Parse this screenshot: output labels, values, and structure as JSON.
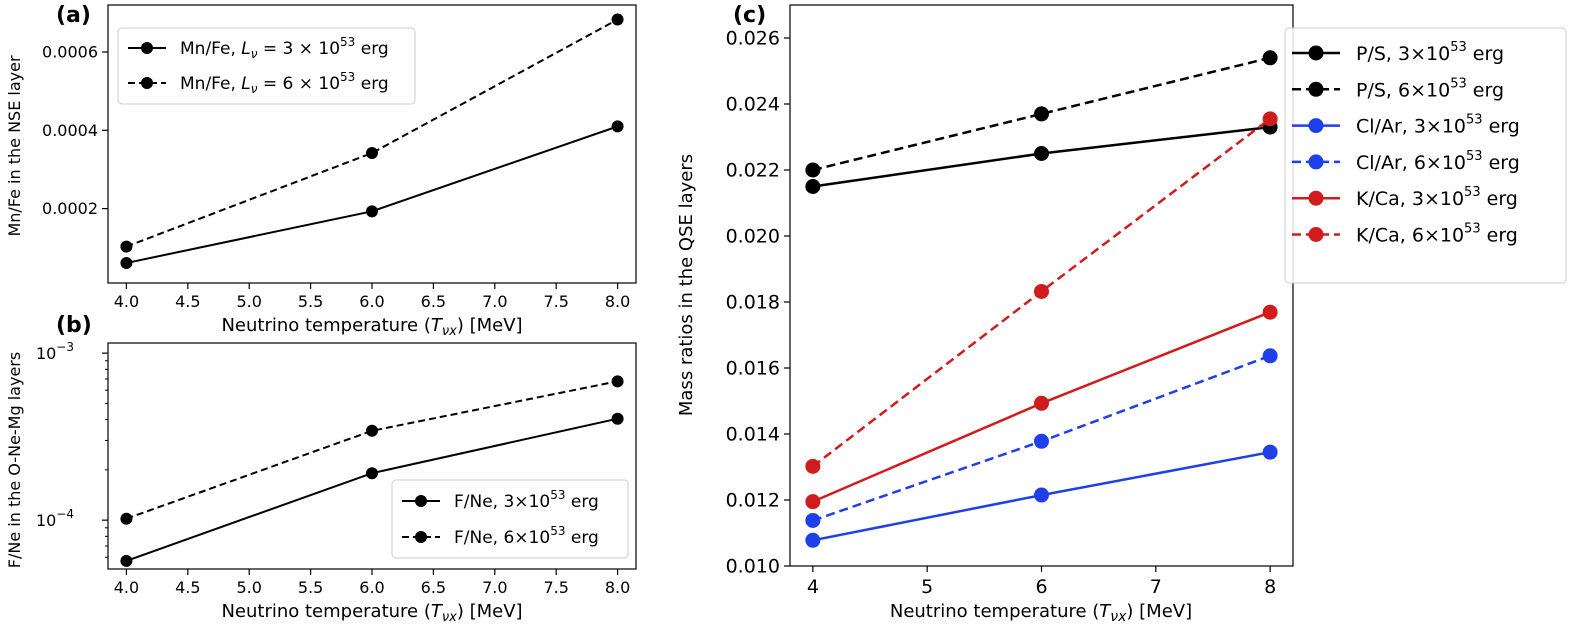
{
  "panels": [
    {
      "label": "(a)",
      "ylabel": "Mn/Fe in the NSE layer",
      "xlabel": "Neutrino temperature (",
      "xlabel_sym": "T",
      "xlabel_sub": "νx",
      "xlabel_end": ") [MeV]"
    },
    {
      "label": "(b)",
      "ylabel": "F/Ne in the O-Ne-Mg layers",
      "xlabel": "Neutrino temperature (",
      "xlabel_sym": "T",
      "xlabel_sub": "νx",
      "xlabel_end": ") [MeV]"
    },
    {
      "label": "(c)",
      "ylabel": "Mass ratios in the QSE layers",
      "xlabel": "Neutrino temperature (",
      "xlabel_sym": "T",
      "xlabel_sub": "νx",
      "xlabel_end": ") [MeV]"
    }
  ],
  "chart_data": [
    {
      "type": "line",
      "panel": "(a)",
      "ylabel": "Mn/Fe in the NSE layer",
      "xlabel": "Neutrino temperature (Tνx) [MeV]",
      "xlim": [
        3.85,
        8.15
      ],
      "ylim": [
        1e-05,
        0.00072
      ],
      "xticks": [
        "4.0",
        "4.5",
        "5.0",
        "5.5",
        "6.0",
        "6.5",
        "7.0",
        "7.5",
        "8.0"
      ],
      "yticks": [
        "0.0002",
        "0.0004",
        "0.0006"
      ],
      "x": [
        4,
        6,
        8
      ],
      "series": [
        {
          "name": "Mn/Fe, Lν = 3 × 10^53 erg",
          "legend_prefix": "Mn/Fe, ",
          "legend_sym": "L",
          "legend_sub": "ν",
          "legend_mid": " = 3 × 10",
          "legend_exp": "53",
          "legend_unit": " erg",
          "style": "solid",
          "color": "#000000",
          "values": [
            6.1e-05,
            0.000193,
            0.00041
          ]
        },
        {
          "name": "Mn/Fe, Lν = 6 × 10^53 erg",
          "legend_prefix": "Mn/Fe, ",
          "legend_sym": "L",
          "legend_sub": "ν",
          "legend_mid": " = 6 × 10",
          "legend_exp": "53",
          "legend_unit": " erg",
          "style": "dashed",
          "color": "#000000",
          "values": [
            0.000103,
            0.000342,
            0.000683
          ]
        }
      ],
      "legend_loc": "upper left"
    },
    {
      "type": "line",
      "panel": "(b)",
      "yscale": "log",
      "ylabel": "F/Ne in the O-Ne-Mg layers",
      "xlabel": "Neutrino temperature (Tνx) [MeV]",
      "xlim": [
        3.85,
        8.15
      ],
      "ylim": [
        5.1e-05,
        0.00115
      ],
      "xticks": [
        "4.0",
        "4.5",
        "5.0",
        "5.5",
        "6.0",
        "6.5",
        "7.0",
        "7.5",
        "8.0"
      ],
      "yticks": [
        {
          "base": "10",
          "exp": "−4"
        },
        {
          "base": "10",
          "exp": "−3"
        }
      ],
      "x": [
        4,
        6,
        8
      ],
      "series": [
        {
          "name": "F/Ne, 3×10^53 erg",
          "legend_prefix": "F/Ne, 3×10",
          "legend_exp": "53",
          "legend_unit": " erg",
          "style": "solid",
          "color": "#000000",
          "values": [
            5.7e-05,
            0.000191,
            0.000405
          ]
        },
        {
          "name": "F/Ne, 6×10^53 erg",
          "legend_prefix": "F/Ne, 6×10",
          "legend_exp": "53",
          "legend_unit": " erg",
          "style": "dashed",
          "color": "#000000",
          "values": [
            0.000102,
            0.000343,
            0.000678
          ]
        }
      ],
      "legend_loc": "lower right"
    },
    {
      "type": "line",
      "panel": "(c)",
      "ylabel": "Mass ratios in the QSE layers",
      "xlabel": "Neutrino temperature (Tνx) [MeV]",
      "xlim": [
        3.8,
        8.2
      ],
      "ylim": [
        0.01,
        0.027
      ],
      "xticks": [
        "4",
        "5",
        "6",
        "7",
        "8"
      ],
      "yticks": [
        "0.010",
        "0.012",
        "0.014",
        "0.016",
        "0.018",
        "0.020",
        "0.022",
        "0.024",
        "0.026"
      ],
      "x": [
        4,
        6,
        8
      ],
      "series": [
        {
          "name": "P/S, 3×10^53 erg",
          "legend_prefix": "P/S, 3×10",
          "legend_exp": "53",
          "legend_unit": " erg",
          "style": "solid",
          "color": "#000000",
          "values": [
            0.0215,
            0.0225,
            0.0233
          ]
        },
        {
          "name": "P/S, 6×10^53 erg",
          "legend_prefix": "P/S, 6×10",
          "legend_exp": "53",
          "legend_unit": " erg",
          "style": "dashed",
          "color": "#000000",
          "values": [
            0.022,
            0.0237,
            0.0254
          ]
        },
        {
          "name": "Cl/Ar, 3×10^53 erg",
          "legend_prefix": "Cl/Ar, 3×10",
          "legend_exp": "53",
          "legend_unit": " erg",
          "style": "solid",
          "color": "#1f3fe8",
          "values": [
            0.01078,
            0.01215,
            0.01345
          ]
        },
        {
          "name": "Cl/Ar, 6×10^53 erg",
          "legend_prefix": "Cl/Ar, 6×10",
          "legend_exp": "53",
          "legend_unit": " erg",
          "style": "dashed",
          "color": "#1f3fe8",
          "values": [
            0.01138,
            0.01378,
            0.01637
          ]
        },
        {
          "name": "K/Ca, 3×10^53 erg",
          "legend_prefix": "K/Ca, 3×10",
          "legend_exp": "53",
          "legend_unit": " erg",
          "style": "solid",
          "color": "#d01c1c",
          "values": [
            0.01195,
            0.01493,
            0.01769
          ]
        },
        {
          "name": "K/Ca, 6×10^53 erg",
          "legend_prefix": "K/Ca, 6×10",
          "legend_exp": "53",
          "legend_unit": " erg",
          "style": "dashed",
          "color": "#d01c1c",
          "values": [
            0.01302,
            0.01832,
            0.02355
          ]
        }
      ],
      "legend_loc": "outside upper right"
    }
  ]
}
